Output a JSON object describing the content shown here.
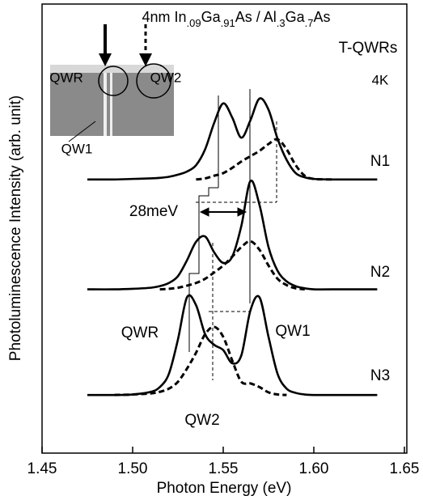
{
  "chart_data": {
    "type": "line",
    "xlabel": "Photon Energy (eV)",
    "ylabel": "Photoluminescence Intensity (arb. unit)",
    "title_parts": [
      "4nm In",
      ".09",
      "Ga",
      ".91",
      "As / Al",
      ".3",
      "Ga",
      ".7",
      "As"
    ],
    "subtitle": "T-QWRs",
    "annotations": [
      "4K",
      "N1",
      "N2",
      "N3",
      "QWR",
      "QW1",
      "QW2",
      "28meV",
      "QWR",
      "QW2",
      "QW1"
    ],
    "x": [
      1.475,
      1.49,
      1.5,
      1.51,
      1.515,
      1.52,
      1.525,
      1.53,
      1.535,
      1.54,
      1.545,
      1.55,
      1.555,
      1.56,
      1.565,
      1.57,
      1.575,
      1.58,
      1.585,
      1.59,
      1.595,
      1.6,
      1.61,
      1.635
    ],
    "series": [
      {
        "color": "#000000",
        "dash": false,
        "values": [
          5.18,
          5.18,
          5.19,
          5.2,
          5.21,
          5.23,
          5.27,
          5.33,
          5.45,
          5.75,
          6.25,
          6.62,
          6.35,
          5.97,
          6.3,
          6.71,
          6.5,
          5.95,
          5.55,
          5.3,
          5.22,
          5.19,
          5.18,
          5.18
        ]
      },
      {
        "color": "#000000",
        "dash": true,
        "values": [
          null,
          null,
          null,
          null,
          null,
          null,
          null,
          null,
          5.18,
          5.2,
          5.25,
          5.3,
          5.4,
          5.52,
          5.62,
          5.72,
          5.85,
          5.94,
          5.75,
          5.45,
          5.25,
          5.19,
          5.18,
          null
        ]
      },
      {
        "color": "#000000",
        "dash": false,
        "values": [
          3.1,
          3.1,
          3.11,
          3.13,
          3.16,
          3.22,
          3.35,
          3.65,
          4.0,
          4.1,
          3.8,
          3.6,
          3.72,
          4.3,
          5.15,
          4.7,
          3.9,
          3.45,
          3.25,
          3.16,
          3.12,
          3.1,
          3.1,
          3.1
        ]
      },
      {
        "color": "#000000",
        "dash": true,
        "values": [
          null,
          null,
          null,
          null,
          3.1,
          3.11,
          3.13,
          3.17,
          3.22,
          3.3,
          3.42,
          3.55,
          3.72,
          3.9,
          4.01,
          3.85,
          3.55,
          3.3,
          3.18,
          3.12,
          3.1,
          null,
          null,
          null
        ]
      },
      {
        "color": "#000000",
        "dash": false,
        "values": [
          1.1,
          1.1,
          1.11,
          1.16,
          1.25,
          1.5,
          2.15,
          2.95,
          2.8,
          2.25,
          2.05,
          1.95,
          1.7,
          1.85,
          2.7,
          2.95,
          2.2,
          1.5,
          1.22,
          1.14,
          1.11,
          1.1,
          1.1,
          1.1
        ]
      },
      {
        "color": "#000000",
        "dash": true,
        "values": [
          null,
          1.1,
          1.11,
          1.13,
          1.16,
          1.22,
          1.35,
          1.6,
          1.9,
          2.25,
          2.39,
          2.2,
          1.75,
          1.35,
          1.32,
          1.25,
          1.15,
          1.11,
          1.1,
          null,
          null,
          null,
          null,
          null
        ]
      }
    ],
    "xlim": [
      1.45,
      1.65
    ],
    "xticks": [
      1.45,
      {
        "value": 1.5,
        "label": "1.50"
      },
      1.55,
      {
        "value": 1.6,
        "label": "1.60"
      },
      1.65
    ],
    "ylim": [
      0,
      8.5
    ]
  }
}
